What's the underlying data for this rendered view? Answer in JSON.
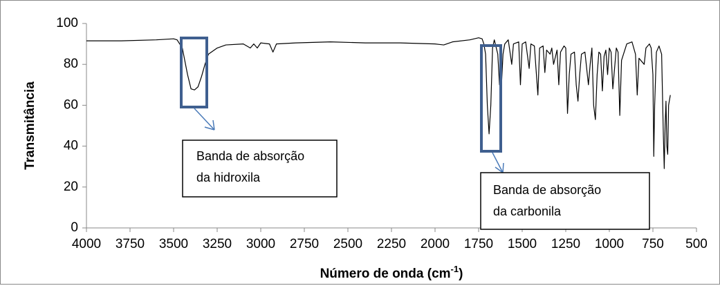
{
  "chart_data": {
    "type": "line",
    "ylabel": "Transmitância",
    "xlabel": {
      "text": "Número de onda (cm",
      "sup": "-1",
      "end": ")"
    },
    "color": "#000000",
    "x": [
      4000,
      3800,
      3600,
      3500,
      3480,
      3450,
      3420,
      3400,
      3380,
      3360,
      3340,
      3320,
      3300,
      3250,
      3200,
      3100,
      3060,
      3040,
      3020,
      3000,
      2950,
      2930,
      2910,
      2800,
      2600,
      2400,
      2200,
      2000,
      1950,
      1900,
      1800,
      1750,
      1730,
      1720,
      1710,
      1700,
      1690,
      1680,
      1670,
      1660,
      1640,
      1630,
      1620,
      1610,
      1600,
      1580,
      1560,
      1550,
      1520,
      1510,
      1500,
      1480,
      1460,
      1450,
      1430,
      1410,
      1400,
      1380,
      1370,
      1360,
      1340,
      1330,
      1320,
      1300,
      1290,
      1280,
      1260,
      1250,
      1240,
      1230,
      1220,
      1200,
      1190,
      1180,
      1170,
      1160,
      1140,
      1120,
      1110,
      1100,
      1090,
      1080,
      1070,
      1060,
      1050,
      1040,
      1030,
      1020,
      1010,
      1000,
      990,
      980,
      960,
      950,
      940,
      930,
      900,
      870,
      850,
      840,
      830,
      800,
      790,
      770,
      760,
      750,
      745,
      740,
      730,
      715,
      700,
      690,
      685,
      680,
      675,
      670,
      665,
      660,
      650
    ],
    "values": [
      91.5,
      91.5,
      92,
      92.5,
      92,
      88,
      75,
      68,
      67.5,
      69,
      74,
      80,
      85,
      88,
      89.5,
      90,
      88,
      90,
      88,
      90.5,
      90,
      86,
      90,
      90.5,
      91,
      90.5,
      90.5,
      90,
      89.5,
      91,
      92,
      93,
      92.5,
      90,
      85,
      60,
      46,
      60,
      88,
      92,
      85,
      70,
      68,
      85,
      90,
      92,
      80,
      90,
      91,
      70,
      90,
      91,
      78,
      90,
      89,
      65,
      88,
      89,
      76,
      87,
      85,
      88,
      80,
      87,
      70,
      86,
      89,
      88,
      56,
      75,
      85,
      86,
      70,
      62,
      75,
      85,
      86,
      70,
      80,
      88,
      60,
      53,
      75,
      86,
      85,
      67,
      84,
      87,
      75,
      88,
      86,
      68,
      88,
      86,
      55,
      82,
      90,
      91,
      85,
      65,
      83,
      80,
      88,
      90,
      88,
      75,
      35,
      60,
      86,
      89,
      85,
      45,
      29,
      50,
      62,
      40,
      36,
      60,
      65
    ],
    "xlim": [
      4000,
      500
    ],
    "ylim": [
      0,
      100
    ],
    "xticks": [
      4000,
      3750,
      3500,
      3250,
      3000,
      2750,
      2500,
      2250,
      2000,
      1750,
      1500,
      1250,
      1000,
      750,
      500
    ],
    "yticks": [
      0,
      20,
      40,
      60,
      80,
      100
    ],
    "annotations": [
      {
        "lines": [
          "Banda de absorção",
          "da hidroxila"
        ]
      },
      {
        "lines": [
          "Banda de absorção",
          "da carbonila"
        ]
      }
    ]
  }
}
